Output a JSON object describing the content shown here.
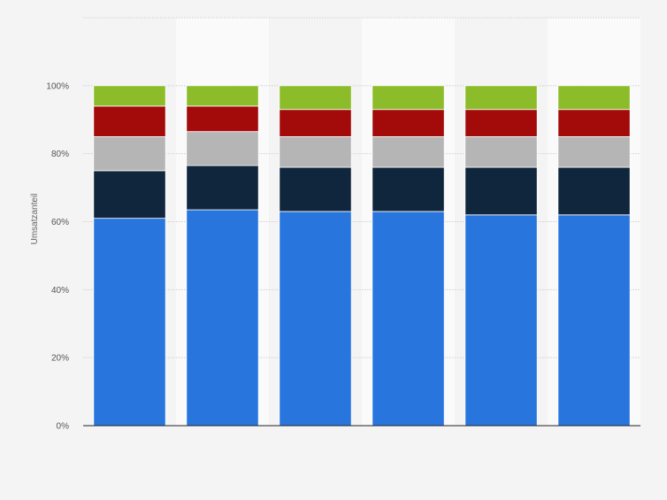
{
  "chart_data": {
    "type": "bar",
    "stacked": true,
    "title": "",
    "xlabel": "",
    "ylabel": "Umsatzanteil",
    "ylim": [
      0,
      120
    ],
    "yticks": [
      0,
      20,
      40,
      60,
      80,
      100
    ],
    "ytick_labels": [
      "0%",
      "20%",
      "40%",
      "60%",
      "80%",
      "100%"
    ],
    "categories": [
      "",
      "",
      "",
      "",
      "",
      ""
    ],
    "grid": true,
    "legend": "none",
    "series": [
      {
        "color": "#2876dd",
        "values": [
          61,
          63.5,
          63,
          63,
          62,
          62
        ]
      },
      {
        "color": "#10263d",
        "values": [
          14,
          13,
          13,
          13,
          14,
          14
        ]
      },
      {
        "color": "#b5b5b5",
        "values": [
          10,
          10,
          9,
          9,
          9,
          9
        ]
      },
      {
        "color": "#a30a0a",
        "values": [
          9,
          7.5,
          8,
          8,
          8,
          8
        ]
      },
      {
        "color": "#8cbc2a",
        "values": [
          6,
          6,
          7,
          7,
          7,
          7
        ]
      }
    ]
  }
}
